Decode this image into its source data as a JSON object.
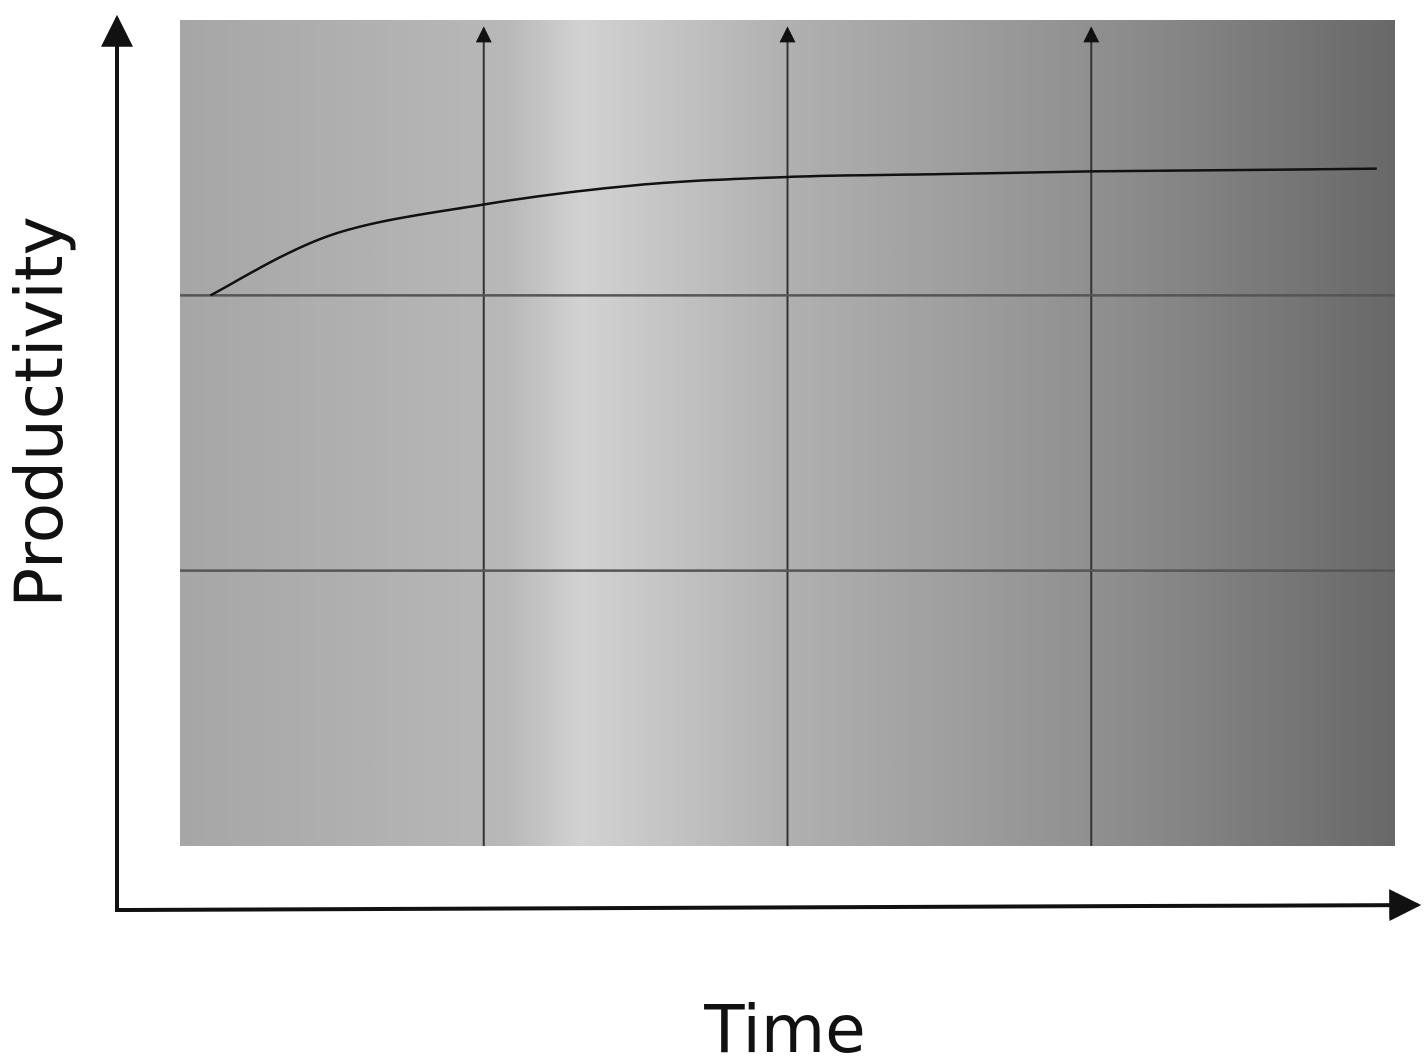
{
  "chart_data": {
    "type": "line",
    "title": "",
    "xlabel": "Time",
    "ylabel": "Productivity",
    "xlim": [
      0,
      4
    ],
    "ylim": [
      0,
      3
    ],
    "grid": true,
    "gridlines_x": [
      1,
      2,
      3
    ],
    "gridlines_y": [
      1,
      2
    ],
    "gridline_arrows": true,
    "series": [
      {
        "points": [
          [
            0.1,
            2.0
          ],
          [
            0.5,
            2.22
          ],
          [
            1.0,
            2.33
          ],
          [
            1.5,
            2.4
          ],
          [
            2.0,
            2.43
          ],
          [
            2.5,
            2.44
          ],
          [
            3.0,
            2.45
          ],
          [
            3.5,
            2.455
          ],
          [
            3.94,
            2.46
          ]
        ]
      }
    ],
    "colors": {
      "line": "#111111",
      "grid": "#555555",
      "panel_light": "#cfcfcf",
      "panel_mid": "#a9a9a9",
      "panel_dark": "#6b6b6b"
    }
  }
}
